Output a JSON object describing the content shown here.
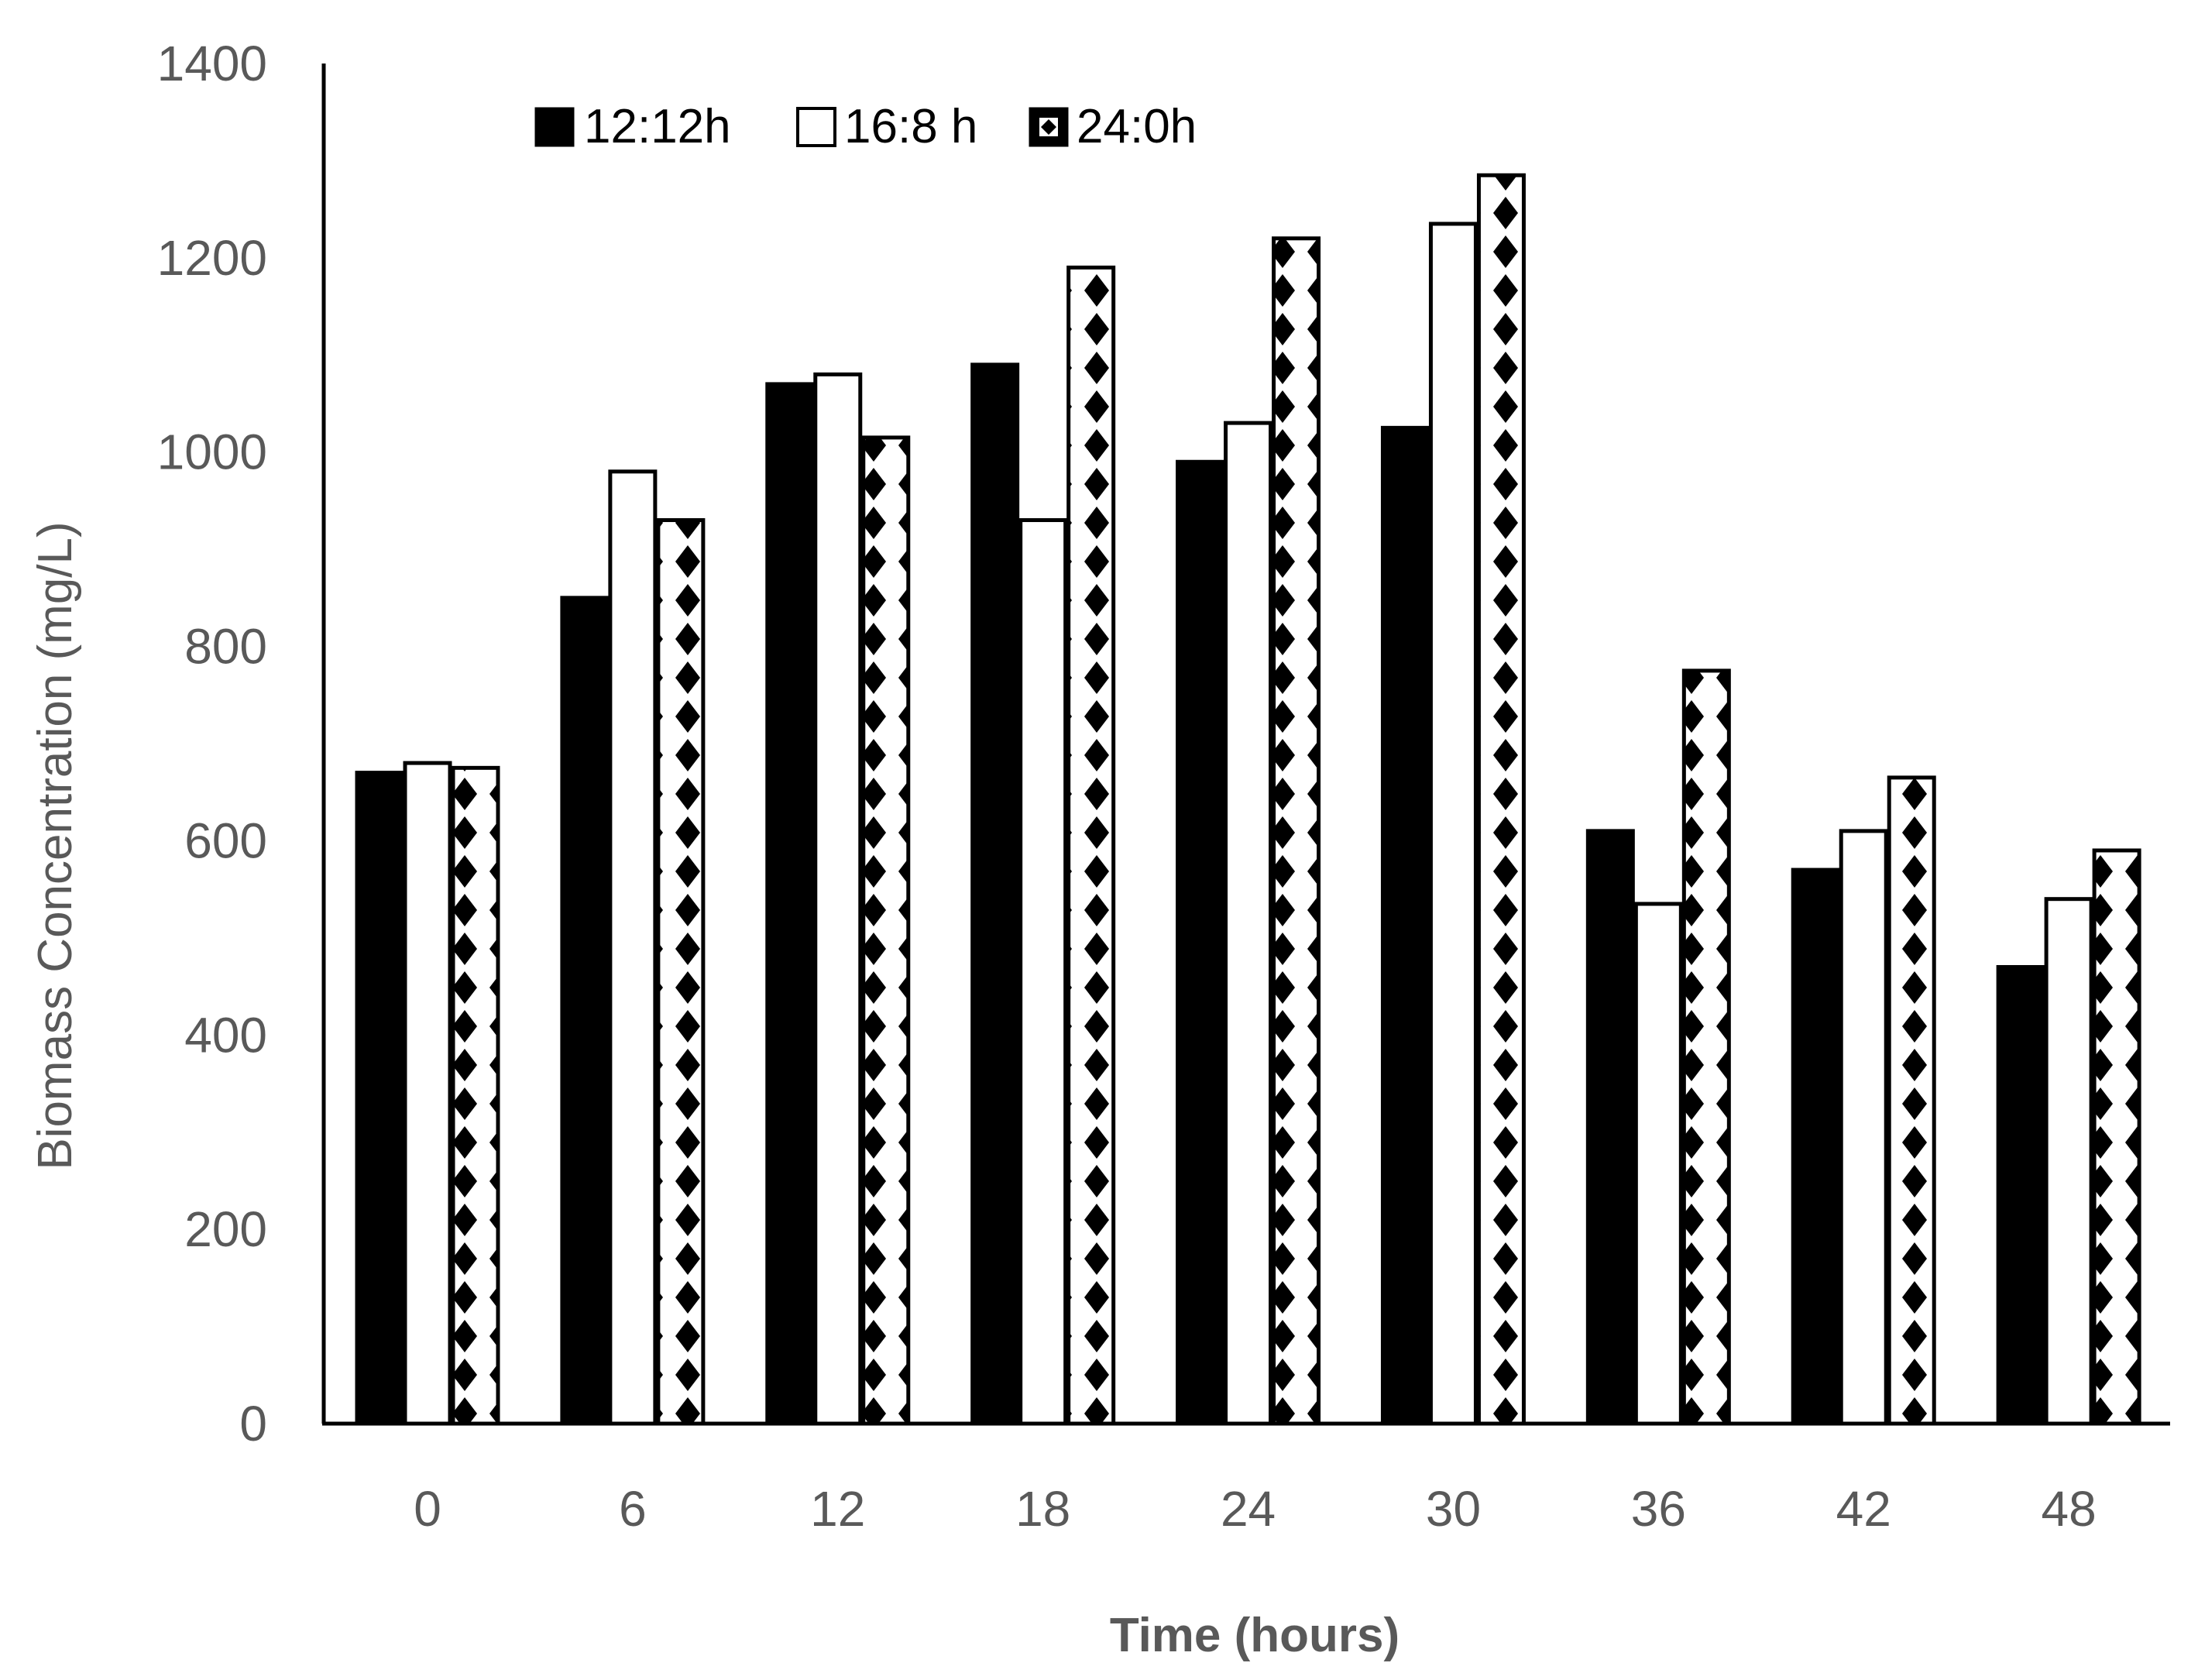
{
  "chart_data": {
    "type": "bar",
    "title": "",
    "xlabel": "Time (hours)",
    "ylabel": "Biomass Concentration (mg/L)",
    "ylim": [
      0,
      1400
    ],
    "yticks": [
      "0",
      "200",
      "400",
      "600",
      "800",
      "1000",
      "1200",
      "1400"
    ],
    "categories": [
      "0",
      "6",
      "12",
      "18",
      "24",
      "30",
      "36",
      "42",
      "48"
    ],
    "series": [
      {
        "name": "12:12h",
        "fill": "solid",
        "values": [
          670,
          850,
          1070,
          1090,
          990,
          1025,
          610,
          570,
          470
        ]
      },
      {
        "name": "16:8 h",
        "fill": "white",
        "values": [
          680,
          980,
          1080,
          930,
          1030,
          1235,
          535,
          610,
          540
        ]
      },
      {
        "name": "24:0h",
        "fill": "pattern",
        "values": [
          675,
          930,
          1015,
          1190,
          1220,
          1285,
          775,
          665,
          590
        ]
      }
    ],
    "legend_position": "top",
    "grid": false
  },
  "colors": {
    "dark": "#000000",
    "light": "#ffffff",
    "text": "#595959"
  }
}
